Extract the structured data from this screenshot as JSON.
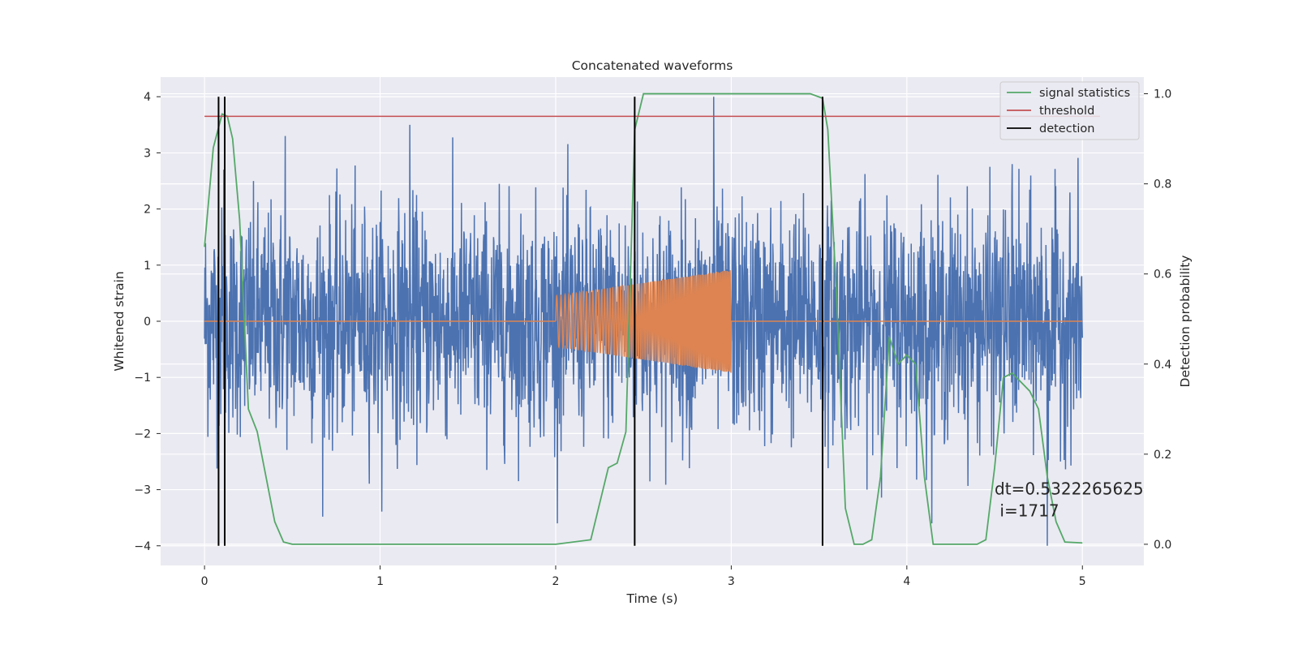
{
  "chart_data": {
    "type": "line",
    "title": "Concatenated waveforms",
    "xlabel": "Time (s)",
    "ylabel": "Whitened strain",
    "y2label": "Detection probability",
    "xlim": [
      -0.25,
      5.35
    ],
    "ylim": [
      -4.35,
      4.35
    ],
    "y2lim": [
      -0.047,
      1.037
    ],
    "xticks": [
      0,
      1,
      2,
      3,
      4,
      5
    ],
    "yticks": [
      -4,
      -3,
      -2,
      -1,
      0,
      1,
      2,
      3,
      4
    ],
    "y2ticks": [
      0.0,
      0.2,
      0.4,
      0.6,
      0.8,
      1.0
    ],
    "grid": true,
    "legend_position": "top-right",
    "legend": [
      {
        "name": "signal statistics",
        "color": "#55a868"
      },
      {
        "name": "threshold",
        "color": "#c44e52"
      },
      {
        "name": "detection",
        "color": "#000000"
      }
    ],
    "series": [
      {
        "name": "strain",
        "axis": "left",
        "color": "#4c72b0",
        "x_range": [
          0,
          5
        ],
        "noise_envelope": {
          "typical_sigma": 1.0,
          "peak_values": [
            [
              0.11,
              2.7
            ],
            [
              0.46,
              3.3
            ],
            [
              1.17,
              3.5
            ],
            [
              2.9,
              4.0
            ],
            [
              4.8,
              -4.0
            ],
            [
              4.6,
              2.8
            ]
          ]
        }
      },
      {
        "name": "injected signal",
        "axis": "left",
        "color": "#dd8452",
        "baseline": 0,
        "chirp": {
          "t_start": 2.0,
          "t_end": 3.0,
          "amplitude_start": 0.45,
          "amplitude_end": 0.92
        }
      },
      {
        "name": "signal statistics",
        "axis": "right",
        "color": "#55a868",
        "x": [
          0,
          0.05,
          0.1,
          0.13,
          0.16,
          0.2,
          0.25,
          0.3,
          0.35,
          0.4,
          0.45,
          0.5,
          1.0,
          1.5,
          2.0,
          2.2,
          2.3,
          2.35,
          2.4,
          2.45,
          2.5,
          3.0,
          3.45,
          3.52,
          3.55,
          3.6,
          3.65,
          3.7,
          3.75,
          3.8,
          3.85,
          3.9,
          3.95,
          4.0,
          4.05,
          4.1,
          4.15,
          4.2,
          4.3,
          4.4,
          4.45,
          4.5,
          4.55,
          4.6,
          4.7,
          4.75,
          4.8,
          4.85,
          4.9,
          5.0
        ],
        "y": [
          0.66,
          0.88,
          0.955,
          0.95,
          0.9,
          0.72,
          0.3,
          0.25,
          0.15,
          0.05,
          0.005,
          0.0,
          0.0,
          0.0,
          0.0,
          0.01,
          0.17,
          0.18,
          0.25,
          0.92,
          1.0,
          1.0,
          1.0,
          0.99,
          0.92,
          0.55,
          0.08,
          0.0,
          0.0,
          0.01,
          0.15,
          0.46,
          0.4,
          0.42,
          0.4,
          0.15,
          0.0,
          0.0,
          0.0,
          0.0,
          0.01,
          0.17,
          0.37,
          0.38,
          0.34,
          0.3,
          0.15,
          0.05,
          0.005,
          0.003
        ]
      },
      {
        "name": "threshold",
        "axis": "right",
        "color": "#c44e52",
        "x": [
          0,
          5.1
        ],
        "y": [
          0.95,
          0.95
        ]
      }
    ],
    "detections": [
      0.08,
      0.115,
      2.45,
      3.52
    ],
    "detection_ylim": [
      -4,
      4
    ],
    "annotation": {
      "line1": "dt=0.5322265625",
      "line2": " i=1717",
      "x": 4.5,
      "y": -3.0
    }
  }
}
